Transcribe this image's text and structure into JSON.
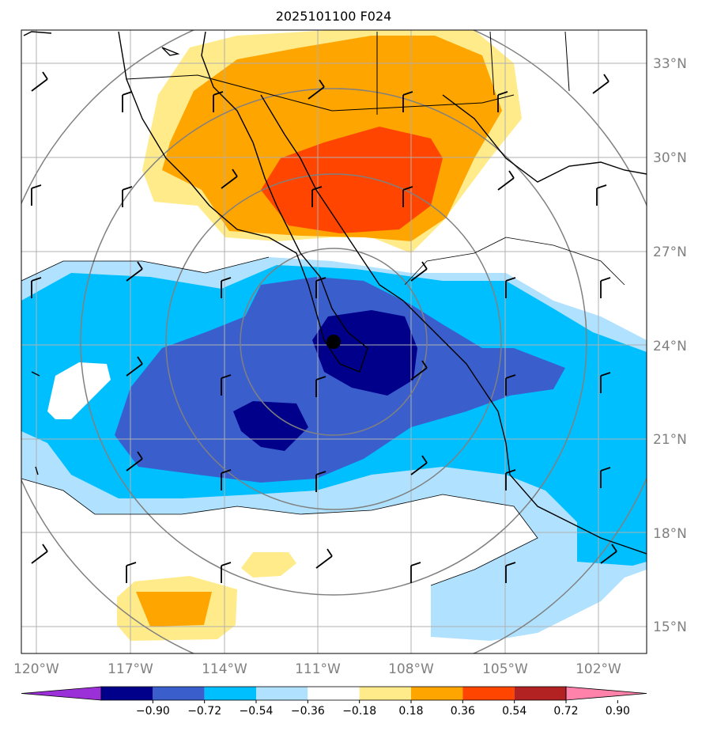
{
  "title": "2025101100 F024",
  "lon_labels": [
    "120°W",
    "117°W",
    "114°W",
    "111°W",
    "108°W",
    "105°W",
    "102°W"
  ],
  "lat_labels": [
    "33°N",
    "30°N",
    "27°N",
    "24°N",
    "21°N",
    "18°N",
    "15°N"
  ],
  "colorbar": {
    "ticks": [
      "−0.90",
      "−0.72",
      "−0.54",
      "−0.36",
      "−0.18",
      "0.18",
      "0.36",
      "0.54",
      "0.72",
      "0.90"
    ],
    "colors": [
      "#9b30d9",
      "#00008b",
      "#3a5fcd",
      "#00bfff",
      "#b0e2ff",
      "#ffffff",
      "#ffeb8a",
      "#ffa500",
      "#ff4500",
      "#b22222",
      "#ff82ab"
    ]
  },
  "contour_colors": {
    "pos_1": "#ffeb8a",
    "pos_2": "#ffa500",
    "pos_3": "#ff4500",
    "neg_1": "#b0e2ff",
    "neg_2": "#00bfff",
    "neg_3": "#3a5fcd",
    "neg_4": "#00008b"
  },
  "center_marker": "storm-center",
  "grid_color": "#b0b0b0",
  "range_ring_color": "#808080"
}
